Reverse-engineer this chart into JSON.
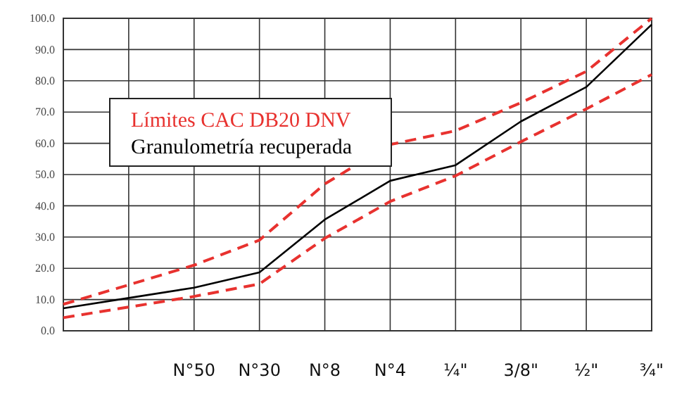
{
  "chart_data": {
    "type": "line",
    "grid": true,
    "marker": "none",
    "legend": "top left",
    "categories": [
      null,
      null,
      "N°50",
      "N°30",
      "N°8",
      "N°4",
      "¼\"",
      "3/8\"",
      "½\"",
      "¾\""
    ],
    "ylim": [
      0,
      100
    ],
    "yticks": [
      {
        "value": 0,
        "label": "0.0"
      },
      {
        "value": 10,
        "label": "10.0"
      },
      {
        "value": 20,
        "label": "20.0"
      },
      {
        "value": 30,
        "label": "30.0"
      },
      {
        "value": 40,
        "label": "40.0"
      },
      {
        "value": 50,
        "label": "50.0"
      },
      {
        "value": 60,
        "label": "60.0"
      },
      {
        "value": 70,
        "label": "70.0"
      },
      {
        "value": 80,
        "label": "80.0"
      },
      {
        "value": 90,
        "label": "90.0"
      },
      {
        "value": 100,
        "label": "100.0"
      }
    ],
    "series": [
      {
        "name": "Límites CAC DB20 DNV",
        "color": "#e8322f",
        "line_style": "dashed",
        "values": [
          8.5,
          14.7,
          21,
          29,
          47,
          59.6,
          64,
          73,
          83,
          100
        ]
      },
      {
        "color": "#e8322f",
        "line_style": "dashed",
        "values": [
          4.2,
          7.6,
          11,
          15,
          29.6,
          41.4,
          49.6,
          60.5,
          71,
          82
        ]
      },
      {
        "name": "Granulometría recuperada",
        "color": "#000000",
        "line_style": "solid",
        "values": [
          7.2,
          10.5,
          13.8,
          18.7,
          35.6,
          48,
          53,
          67,
          78,
          98
        ]
      }
    ]
  }
}
